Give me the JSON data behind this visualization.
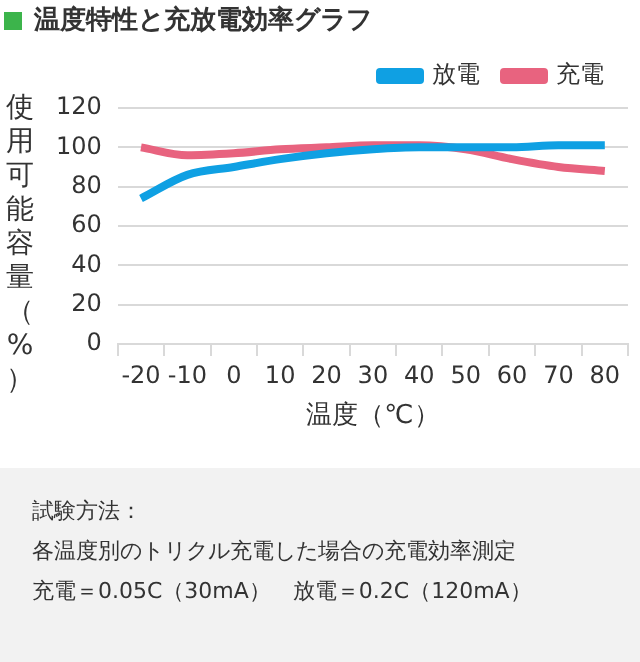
{
  "chart_data": {
    "type": "line",
    "title": "温度特性と充放電効率グラフ",
    "ylabel": "使用可能容量（%）",
    "xlabel": "温度（℃）",
    "categories": [
      "-20",
      "-10",
      "0",
      "10",
      "20",
      "30",
      "40",
      "50",
      "60",
      "70",
      "80"
    ],
    "series": [
      {
        "name": "放電",
        "color": "#0fa0e3",
        "values": [
          74,
          86,
          90,
          94,
          97,
          99,
          100,
          100,
          100,
          101,
          101
        ]
      },
      {
        "name": "充電",
        "color": "#e8637f",
        "values": [
          100,
          96,
          97,
          99,
          100,
          101,
          101,
          99,
          94,
          90,
          88
        ]
      }
    ],
    "ylim": [
      0,
      120
    ],
    "yticks": [
      0,
      20,
      40,
      60,
      80,
      100,
      120
    ],
    "grid": "y",
    "legend": "top right",
    "marker": "none",
    "line_style": "solid",
    "annotations": [
      "試験方法：",
      "各温度別のトリクル充電した場合の充電効率測定",
      "充電＝0.05C（30mA）　放電＝0.2C（120mA）"
    ]
  }
}
